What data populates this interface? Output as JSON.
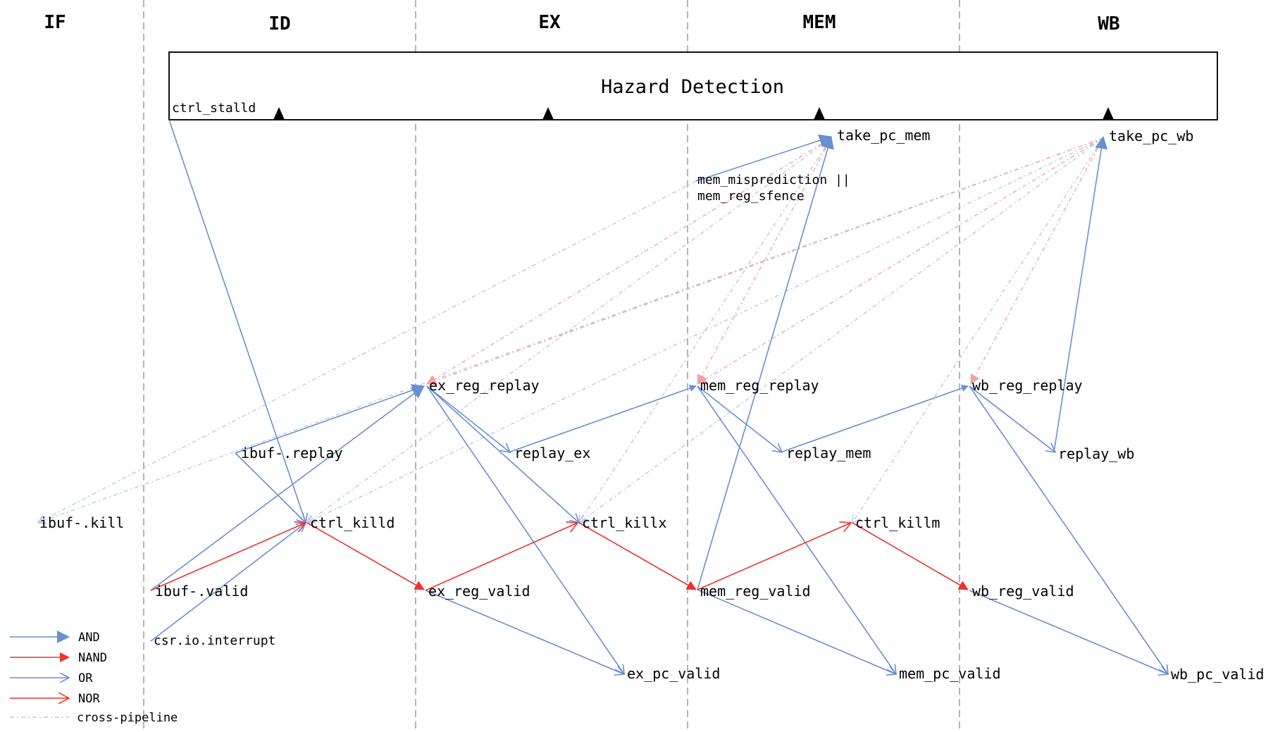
{
  "stages": [
    "IF",
    "ID",
    "EX",
    "MEM",
    "WB"
  ],
  "hazard_box": {
    "title": "Hazard Detection",
    "stall_label": "ctrl_stalld"
  },
  "nodes": {
    "take_pc_mem": "take_pc_mem",
    "take_pc_wb": "take_pc_wb",
    "mem_mis_line1": "mem_misprediction ||",
    "mem_mis_line2": "mem_reg_sfence",
    "ex_reg_replay": "ex_reg_replay",
    "mem_reg_replay": "mem_reg_replay",
    "wb_reg_replay": "wb_reg_replay",
    "ibuf_replay": "ibuf-.replay",
    "replay_ex": "replay_ex",
    "replay_mem": "replay_mem",
    "replay_wb": "replay_wb",
    "ibuf_kill": "ibuf-.kill",
    "ctrl_killd": "ctrl_killd",
    "ctrl_killx": "ctrl_killx",
    "ctrl_killm": "ctrl_killm",
    "ibuf_valid": "ibuf-.valid",
    "ex_reg_valid": "ex_reg_valid",
    "mem_reg_valid": "mem_reg_valid",
    "wb_reg_valid": "wb_reg_valid",
    "csr_interrupt": "csr.io.interrupt",
    "ex_pc_valid": "ex_pc_valid",
    "mem_pc_valid": "mem_pc_valid",
    "wb_pc_valid": "wb_pc_valid"
  },
  "legend": [
    {
      "label": "AND",
      "kind": "and"
    },
    {
      "label": "NAND",
      "kind": "nand"
    },
    {
      "label": "OR",
      "kind": "or"
    },
    {
      "label": "NOR",
      "kind": "nor"
    },
    {
      "label": "cross-pipeline",
      "kind": "cross"
    }
  ],
  "colors": {
    "and": "#6a8fd2",
    "nand": "#ee3333",
    "cross_blue": "#b8c6e6",
    "cross_red": "#f0a4a4",
    "divider": "#b4b4b4",
    "box": "#111111"
  }
}
